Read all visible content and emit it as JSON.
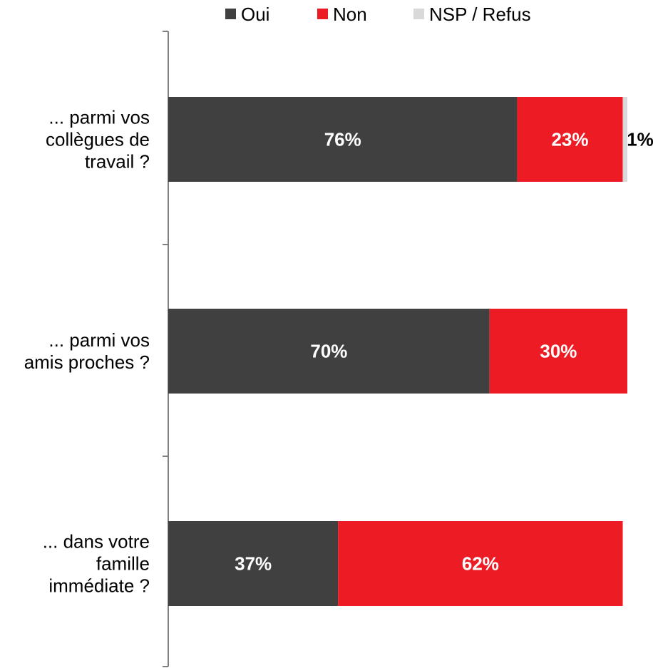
{
  "chart_data": {
    "type": "bar",
    "orientation": "horizontal",
    "stacked": true,
    "categories": [
      [
        "... parmi vos",
        "collègues de",
        "travail ?"
      ],
      [
        "... parmi vos",
        "amis proches ?"
      ],
      [
        "... dans votre",
        "famille",
        "immédiate ?"
      ]
    ],
    "series": [
      {
        "name": "Oui",
        "color": "#404040",
        "label_color": "#ffffff",
        "values": [
          76,
          70,
          37
        ],
        "labels": [
          "76%",
          "70%",
          "37%"
        ]
      },
      {
        "name": "Non",
        "color": "#ed1c24",
        "label_color": "#ffffff",
        "values": [
          23,
          30,
          62
        ],
        "labels": [
          "23%",
          "30%",
          "62%"
        ]
      },
      {
        "name": "NSP / Refus",
        "color": "#d9d9d9",
        "label_color": "#000000",
        "values": [
          1,
          0,
          0
        ],
        "labels": [
          "1%",
          "",
          ""
        ]
      }
    ],
    "xlim": [
      0,
      100
    ],
    "legend_position": "top",
    "grid": false
  }
}
